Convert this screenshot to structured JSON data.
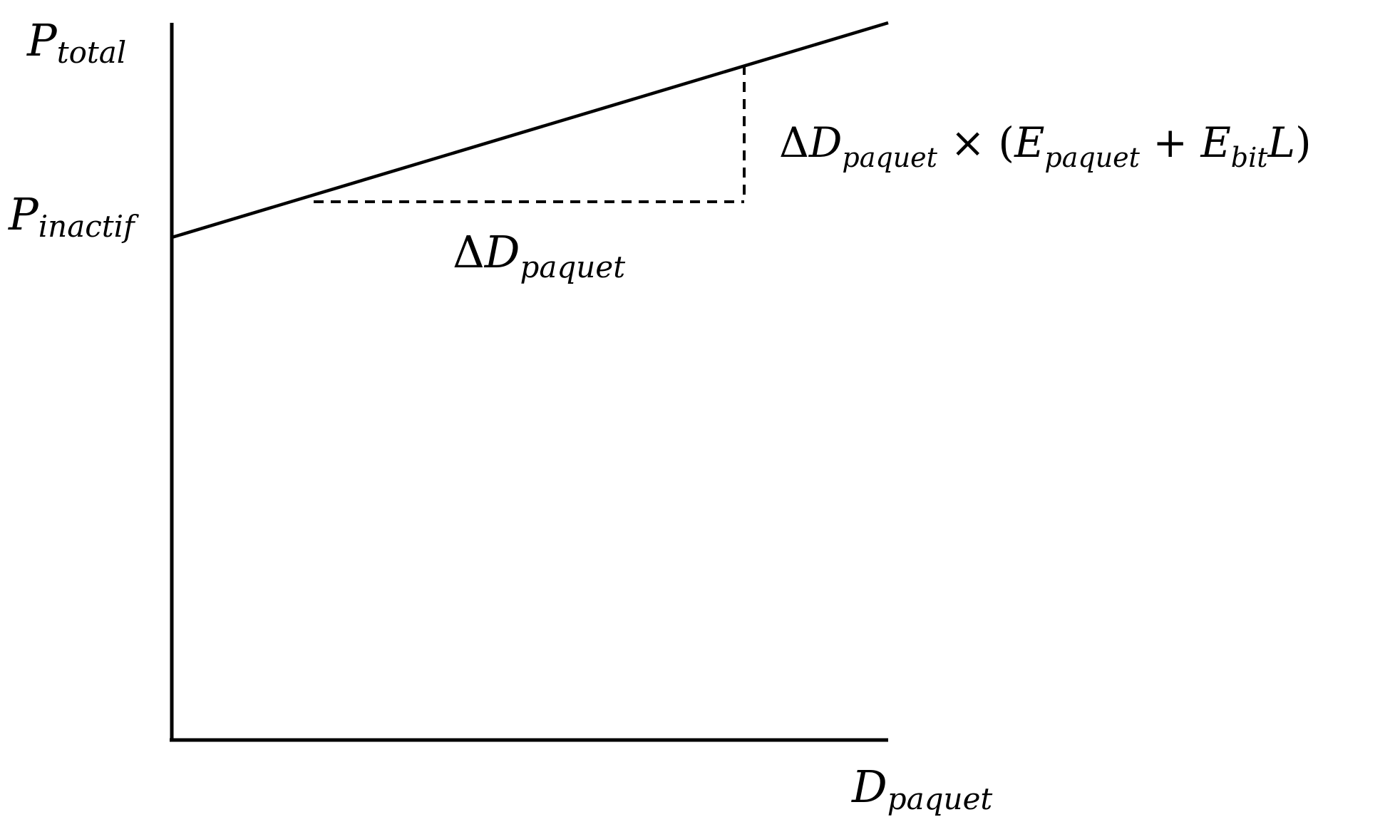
{
  "diagram": {
    "y_axis_label": {
      "base": "P",
      "sub": "total"
    },
    "intercept_label": {
      "base": "P",
      "sub": "inactif"
    },
    "x_axis_label": {
      "base": "D",
      "sub": "paquet"
    },
    "run_label": {
      "delta": "Δ",
      "base": "D",
      "sub": "paquet"
    },
    "rise_label": {
      "delta": "Δ",
      "base": "D",
      "sub": "paquet",
      "times": " × (",
      "e1": "E",
      "e1_sub": "paquet",
      "plus": " + ",
      "e2": "E",
      "e2_sub": "bit",
      "l": "L",
      "close": ")"
    },
    "colors": {
      "ink": "#000000",
      "background": "#ffffff"
    }
  }
}
